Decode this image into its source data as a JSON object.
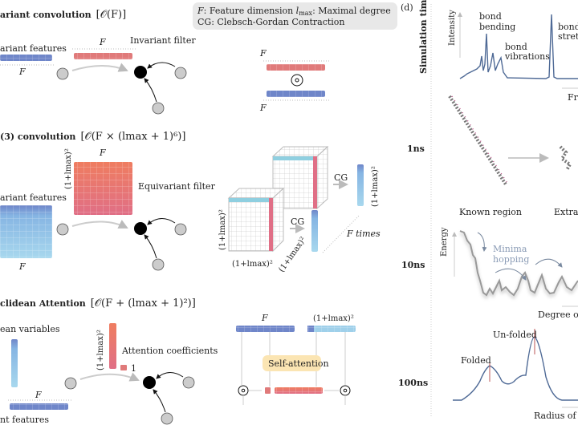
{
  "legend": {
    "line1_f": "F",
    "line1_rest": ": Feature dimension ",
    "line1_l": "l",
    "line1_lsub": "max",
    "line1_tail": ": Maximal degree",
    "line2": "CG: Clebsch-Gordan Contraction"
  },
  "panel_d_label": "(d)",
  "sections": [
    {
      "title": "ariant convolution",
      "complexity": "[𝒪(F)]"
    },
    {
      "title": "(3) convolution",
      "complexity": "[𝒪(F × (lmax + 1)⁶)]"
    },
    {
      "title": "clidean Attention",
      "complexity": "[𝒪(F + (lmax + 1)²)]"
    }
  ],
  "row1": {
    "features_label": "ariant features",
    "filter_label": "Invariant filter",
    "dim_f": "F",
    "odot": "⊙"
  },
  "row2": {
    "features_label": "ariant features",
    "filter_label": "Equivariant filter",
    "dim_f": "F",
    "dim_l": "(1+lmax)²",
    "cg": "CG",
    "f_times": "F times"
  },
  "row3": {
    "variables_label": "ean variables",
    "features_label": "nt features",
    "coeff_label": "Attention coefficients",
    "one": "1",
    "dim_f": "F",
    "dim_l": "(1+lmax)²",
    "self_attention": "Self-attention"
  },
  "panel_d": {
    "axis_label": "Simulation time",
    "ticks": [
      "1ns",
      "10ns",
      "100ns"
    ],
    "spectrum": {
      "ylabel": "Intensity",
      "bending": [
        "bond",
        "bending"
      ],
      "vibrations": [
        "bond",
        "vibrations"
      ],
      "stretching": [
        "bond",
        "stretc"
      ],
      "xlabel": "Fr"
    },
    "molecule": {
      "known": "Known region",
      "extrap": "Extrap"
    },
    "energy": {
      "ylabel": "Energy",
      "hopping": [
        "Minima",
        "hopping"
      ],
      "xlabel": "Degree of"
    },
    "folding": {
      "folded": "Folded",
      "unfolded": "Un-folded",
      "xlabel": "Radius of C"
    }
  },
  "colors": {
    "blue": "#6f86c9",
    "light_blue": "#9fd0ea",
    "red": "#e07a7a",
    "orange": "#ef8a6a",
    "yellow": "#fbe5b3",
    "curve": "#4f6a96",
    "legend_bg": "#e8e8e8"
  }
}
